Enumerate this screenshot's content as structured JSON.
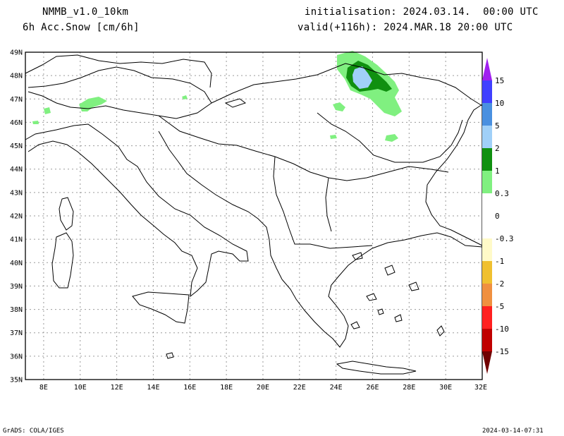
{
  "header": {
    "model": "NMMB_v1.0_10km",
    "field": "6h Acc.Snow [cm/6h]",
    "init": "initialisation: 2024.03.14.  00:00 UTC",
    "valid": "valid(+116h): 2024.MAR.18 20:00 UTC"
  },
  "footer": {
    "left": "GrADS: COLA/IGES",
    "right": "2024-03-14-07:31"
  },
  "map": {
    "lon_labels": [
      "8E",
      "10E",
      "12E",
      "14E",
      "16E",
      "18E",
      "20E",
      "22E",
      "24E",
      "26E",
      "28E",
      "30E",
      "32E"
    ],
    "lat_labels": [
      "49N",
      "48N",
      "47N",
      "46N",
      "45N",
      "44N",
      "43N",
      "42N",
      "41N",
      "40N",
      "39N",
      "38N",
      "37N",
      "36N",
      "35N"
    ]
  },
  "colorbar": {
    "levels": [
      "15",
      "10",
      "5",
      "2",
      "1",
      "0.3",
      "0",
      "-0.3",
      "-1",
      "-2",
      "-5",
      "-10",
      "-15"
    ],
    "colors": {
      "top_triangle": "#a020f0",
      "c_10_15": "#4040ff",
      "c_5_10": "#4a90e0",
      "c_2_5": "#a0d0f8",
      "c_1_2": "#109010",
      "c_03_1": "#80f080",
      "neg_03": "#fffac8",
      "neg_1": "#f0c030",
      "neg_2": "#f09040",
      "neg_5": "#ff2020",
      "neg_10": "#c00000",
      "bottom_triangle": "#700000"
    }
  }
}
